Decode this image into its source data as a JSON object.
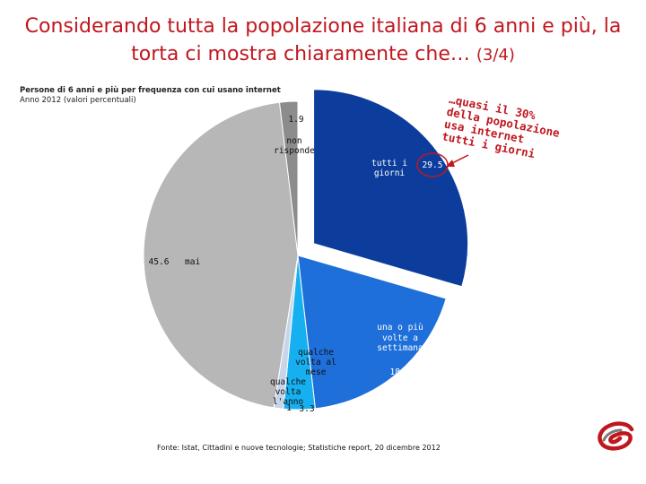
{
  "slide": {
    "title_main": "Considerando tutta la popolazione italiana di 6 anni e più, la torta ci mostra chiaramente che…",
    "title_tag": "(3/4)",
    "callout": "…quasi il 30% della popolazione usa internet tutti i giorni"
  },
  "chart_data": {
    "type": "pie",
    "title": "Persone di 6 anni e più per frequenza con cui usano internet",
    "subtitle": "Anno 2012 (valori percentuali)",
    "source": "Fonte: Istat, Cittadini e nuove tecnologie; Statistiche report, 20 dicembre 2012",
    "slices": [
      {
        "label": "tutti i giorni",
        "value": 29.5,
        "value_label": "29.5",
        "color": "#0d3d9c",
        "exploded": true
      },
      {
        "label": "una o più volte a settimana",
        "value": 18.7,
        "value_label": "18.7",
        "color": "#1e6fd9",
        "exploded": false
      },
      {
        "label": "qualche volta al mese",
        "value": 3.3,
        "value_label": "3.3",
        "color": "#16b0f0",
        "exploded": false
      },
      {
        "label": "qualche volta l'anno",
        "value": 1,
        "value_label": "1",
        "color": "#c7d5ea",
        "exploded": false
      },
      {
        "label": "mai",
        "value": 45.6,
        "value_label": "45.6",
        "color": "#b7b7b7",
        "exploded": false
      },
      {
        "label": "non risponde",
        "value": 1.9,
        "value_label": "1.9",
        "color": "#8c8c8c",
        "exploded": false
      }
    ]
  }
}
